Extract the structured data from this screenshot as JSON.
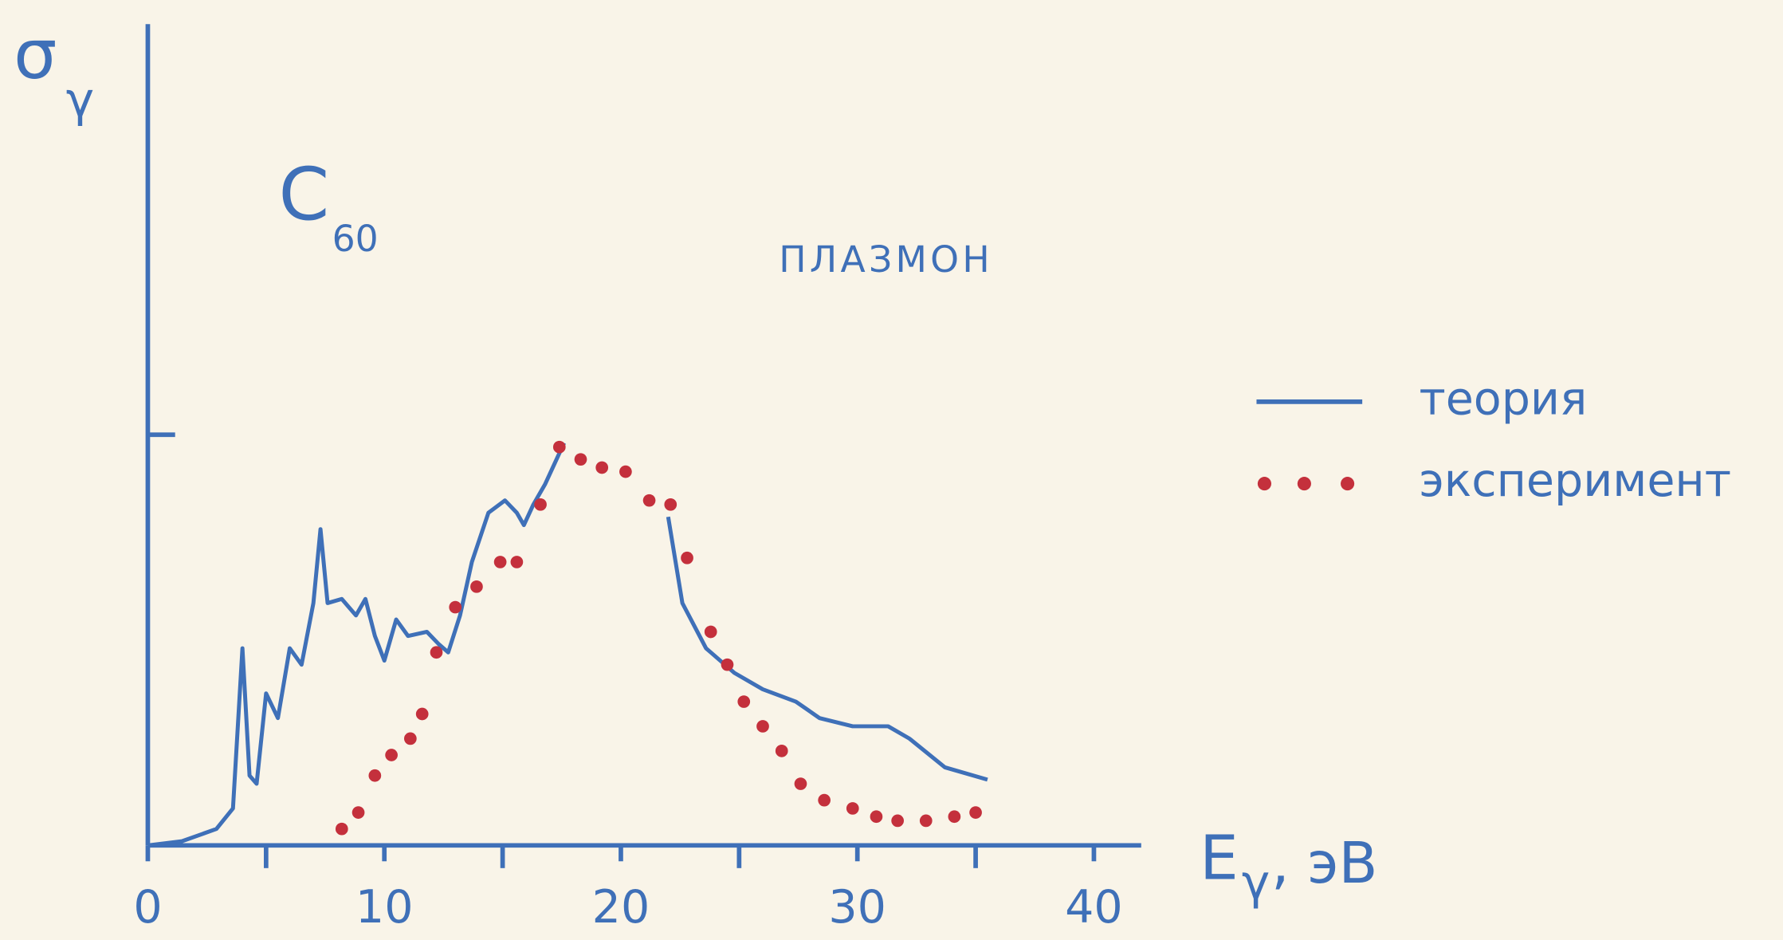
{
  "chart_data": {
    "type": "line",
    "ylabel": "σ",
    "ylabel_sub": "γ",
    "xlabel": "E",
    "xlabel_sub": "γ",
    "xlabel_unit": ", эВ",
    "annotations": [
      {
        "text": "C",
        "sub": "60"
      },
      {
        "text": "ПЛАЗМОН"
      }
    ],
    "xlim": [
      0,
      42
    ],
    "xticks": [
      0,
      10,
      20,
      30,
      40
    ],
    "xminor": [
      5,
      15,
      25,
      35
    ],
    "ylim": [
      0,
      2
    ],
    "yticks": [
      1
    ],
    "legend": "right",
    "series": [
      {
        "name": "теория",
        "color": "#3f70b8",
        "style": "line",
        "x": [
          0,
          1.44,
          2.9,
          3.6,
          4.0,
          4.3,
          4.6,
          5.0,
          5.5,
          6.0,
          6.5,
          7.0,
          7.3,
          7.6,
          8.2,
          8.8,
          9.2,
          9.6,
          10.0,
          10.5,
          11.0,
          11.8,
          12.3,
          12.7,
          13.2,
          13.7,
          14.4,
          15.1,
          15.6,
          15.9,
          16.3,
          16.8,
          17.6,
          20,
          22.0,
          22.6,
          23.6,
          24.8,
          26.0,
          27.4,
          28.4,
          29.8,
          31.3,
          32.2,
          33.7,
          35.5
        ],
        "values": [
          0,
          0.01,
          0.04,
          0.09,
          0.48,
          0.17,
          0.15,
          0.37,
          0.31,
          0.48,
          0.44,
          0.59,
          0.77,
          0.59,
          0.6,
          0.56,
          0.6,
          0.51,
          0.45,
          0.55,
          0.51,
          0.52,
          0.49,
          0.47,
          0.56,
          0.69,
          0.81,
          0.84,
          0.81,
          0.78,
          0.83,
          0.88,
          0.98,
          null,
          0.8,
          0.59,
          0.48,
          0.42,
          0.38,
          0.35,
          0.31,
          0.29,
          0.29,
          0.26,
          0.19,
          0.16
        ]
      },
      {
        "name": "эксперимент",
        "color": "#c4303c",
        "style": "dots",
        "x": [
          8.2,
          8.9,
          9.6,
          10.3,
          11.1,
          11.6,
          12.2,
          13.0,
          13.9,
          14.9,
          15.6,
          16.6,
          17.4,
          18.3,
          19.2,
          20.2,
          21.2,
          22.1,
          22.8,
          23.8,
          24.5,
          25.2,
          26.0,
          26.8,
          27.6,
          28.6,
          29.8,
          30.8,
          31.7,
          32.9,
          34.1,
          35.0
        ],
        "values": [
          0.04,
          0.08,
          0.17,
          0.22,
          0.26,
          0.32,
          0.47,
          0.58,
          0.63,
          0.69,
          0.69,
          0.83,
          0.97,
          0.94,
          0.92,
          0.91,
          0.84,
          0.83,
          0.7,
          0.52,
          0.44,
          0.35,
          0.29,
          0.23,
          0.15,
          0.11,
          0.09,
          0.07,
          0.06,
          0.06,
          0.07,
          0.08
        ]
      }
    ]
  }
}
